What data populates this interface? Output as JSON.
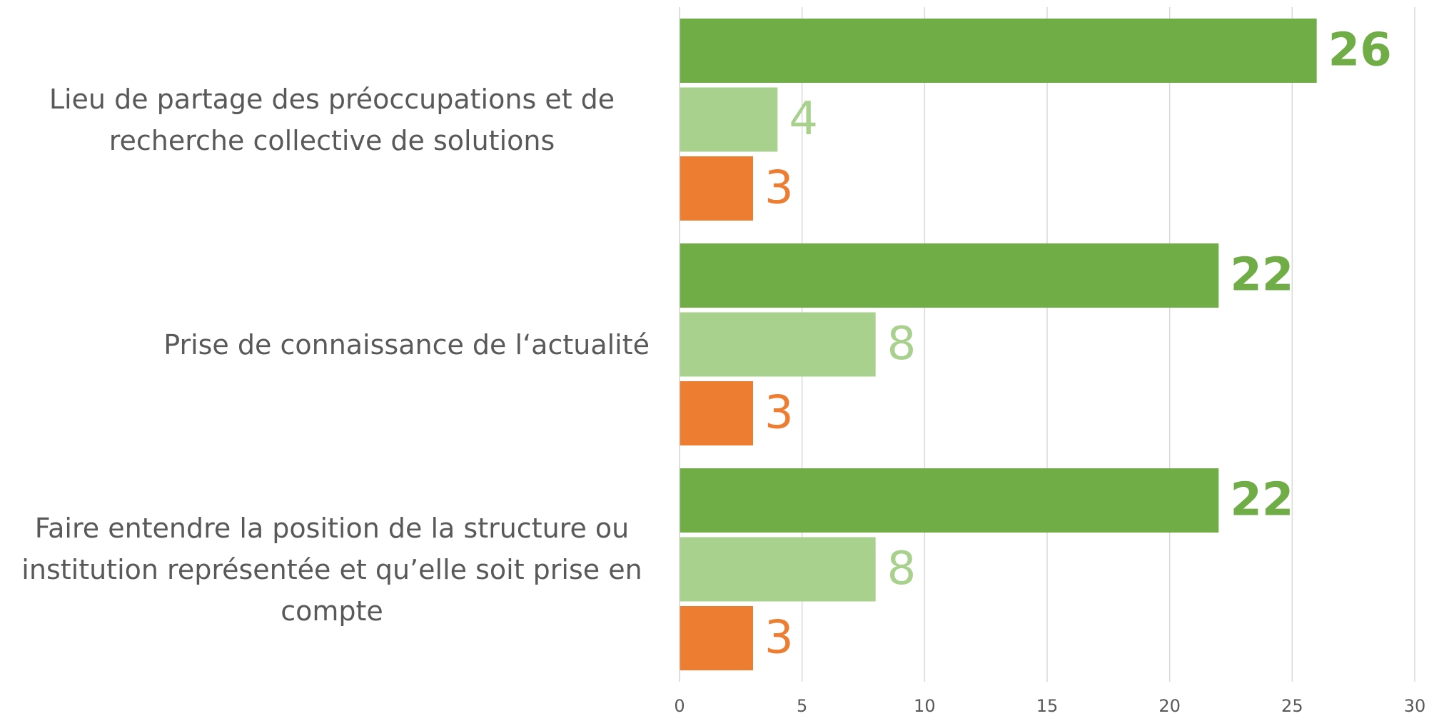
{
  "chart_data": {
    "type": "bar",
    "orientation": "horizontal",
    "categories": [
      "Lieu de partage des préoccupations et de recherche collective de solutions",
      "Prise de connaissance de l‘actualité",
      "Faire entendre la position de la structure ou institution représentée et qu’elle soit prise en compte"
    ],
    "series": [
      {
        "color": "#70ad47",
        "values": [
          26,
          22,
          22
        ]
      },
      {
        "color": "#a9d18e",
        "values": [
          4,
          8,
          8
        ]
      },
      {
        "color": "#ed7d31",
        "values": [
          3,
          3,
          3
        ]
      }
    ],
    "xlim": [
      0,
      30
    ],
    "xticks": [
      0,
      5,
      10,
      15,
      20,
      25,
      30
    ],
    "grid": true
  }
}
